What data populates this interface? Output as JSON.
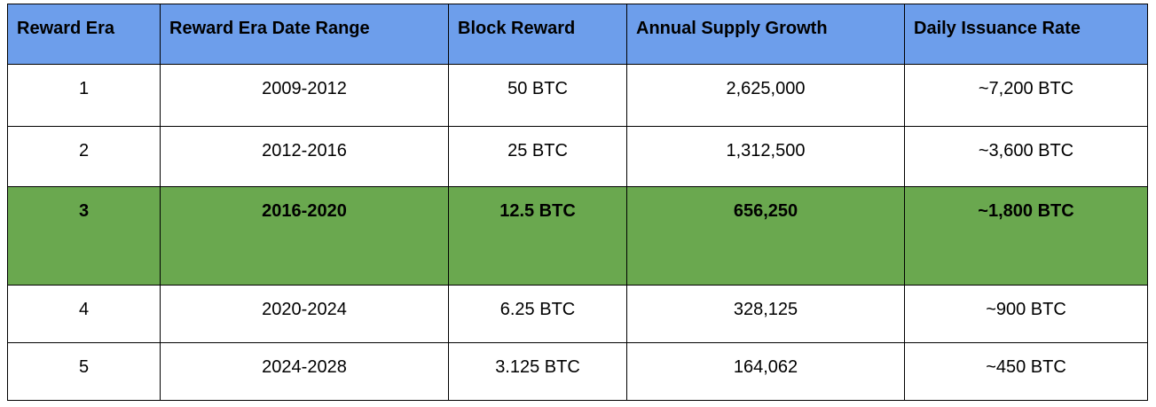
{
  "table": {
    "headers": [
      "Reward Era",
      "Reward Era Date Range",
      "Block Reward",
      "Annual Supply Growth",
      "Daily Issuance Rate"
    ],
    "rows": [
      [
        "1",
        "2009-2012",
        "50 BTC",
        "2,625,000",
        "~7,200 BTC"
      ],
      [
        "2",
        "2012-2016",
        "25 BTC",
        "1,312,500",
        "~3,600 BTC"
      ],
      [
        "3",
        "2016-2020",
        "12.5 BTC",
        "656,250",
        "~1,800 BTC"
      ],
      [
        "4",
        "2020-2024",
        "6.25 BTC",
        "328,125",
        "~900 BTC"
      ],
      [
        "5",
        "2024-2028",
        "3.125 BTC",
        "164,062",
        "~450 BTC"
      ]
    ],
    "highlighted_row": 3
  },
  "colors": {
    "header_background": "#6d9eeb",
    "highlight_background": "#6aa84f",
    "border": "#000000"
  }
}
